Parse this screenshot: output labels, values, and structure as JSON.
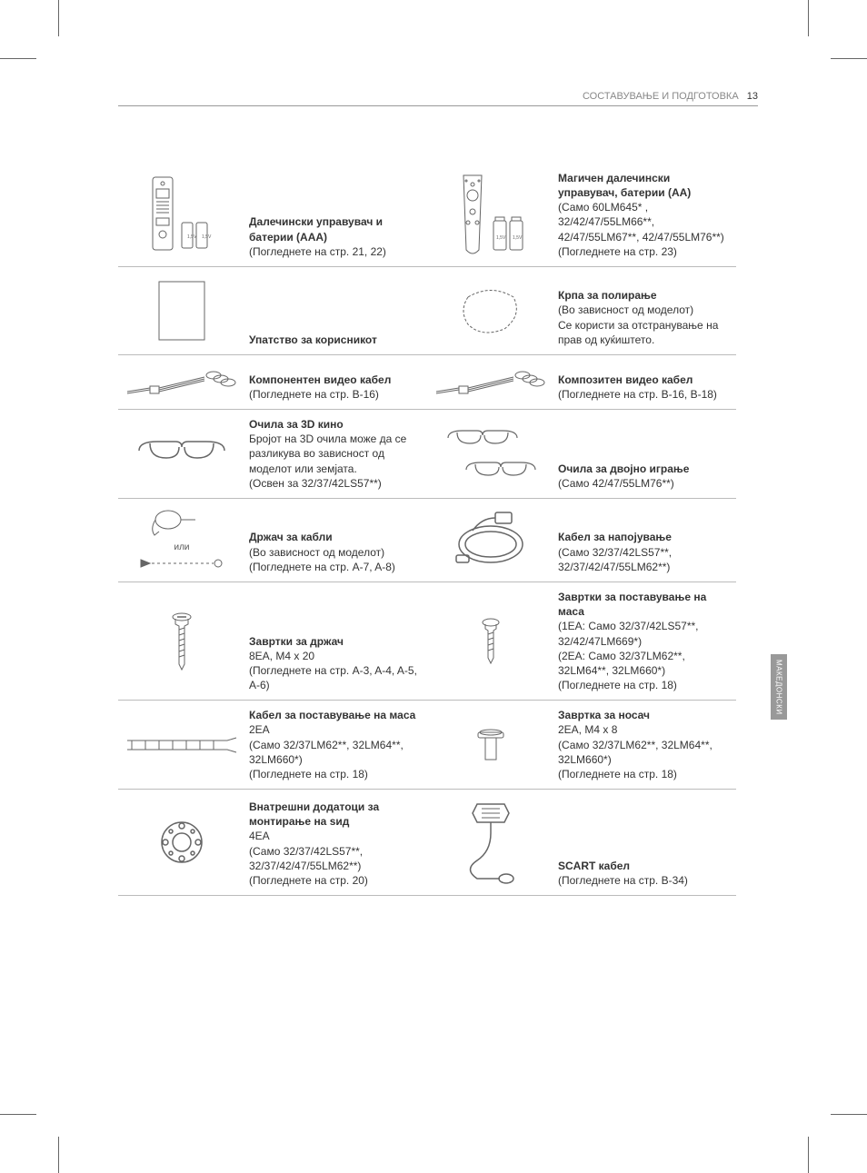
{
  "header": {
    "section": "СОСТАВУВАЊЕ И ПОДГОТОВКА",
    "page": "13"
  },
  "sideTab": "МАКЕДОНСКИ",
  "orLabel": "или",
  "items": [
    {
      "left": {
        "title": "Далечински управувач и батерии (AAA)",
        "sub": "(Погледнете на стр. 21, 22)",
        "icon": "remote-aaa"
      },
      "right": {
        "title": "Магичен далечински управувач, батерии (AA)",
        "sub": "(Само 60LM645* , 32/42/47/55LM66**, 42/47/55LM67**, 42/47/55LM76**)\n(Погледнете на стр. 23)",
        "icon": "magic-remote"
      }
    },
    {
      "left": {
        "title": "Упатство за корисникот",
        "sub": "",
        "icon": "manual"
      },
      "right": {
        "title": "Крпа за полирање",
        "sub": "(Во зависност од моделот)\nСе користи за отстранување на прав од куќиштето.",
        "icon": "cloth"
      }
    },
    {
      "left": {
        "title": "Компонентен видео кабел",
        "sub": "(Погледнете на стр. B-16)",
        "icon": "component-cable"
      },
      "right": {
        "title": "Композитен видео кабел",
        "sub": "(Погледнете на стр. B-16, B-18)",
        "icon": "composite-cable"
      }
    },
    {
      "left": {
        "title": "Очила за 3D кино",
        "sub": "Бројот на 3D очила може да се разликува во зависност од моделот или земјата.\n(Освен за 32/37/42LS57**)",
        "icon": "glasses-single"
      },
      "right": {
        "title": "Очила за двојно играње",
        "sub": "(Само 42/47/55LM76**)",
        "icon": "glasses-dual"
      }
    },
    {
      "left": {
        "title": "Држач за кабли",
        "sub": "(Во зависност од моделот)\n(Погледнете на стр. A-7, A-8)",
        "icon": "cable-holder"
      },
      "right": {
        "title": "Кабел за напојување",
        "sub": "(Само 32/37/42LS57**, 32/37/42/47/55LM62**)",
        "icon": "power-cable"
      }
    },
    {
      "left": {
        "title": "Завртки за држач",
        "sub": "8EA, M4 x 20\n(Погледнете на стр. A-3, A-4, A-5, A-6)",
        "icon": "screw-long"
      },
      "right": {
        "title": "Завртки за поставување на маса",
        "sub": "(1EA: Само 32/37/42LS57**, 32/42/47LM669*)\n(2EA: Само 32/37LM62**, 32LM64**, 32LM660*)\n(Погледнете на стр. 18)",
        "icon": "screw-short"
      }
    },
    {
      "left": {
        "title": "Кабел за поставување на маса",
        "sub": "2EA\n(Само 32/37LM62**, 32LM64**, 32LM660*)\n(Погледнете на стр. 18)",
        "icon": "desk-cable"
      },
      "right": {
        "title": "Завртка за носач",
        "sub": "2EA, M4 x 8\n(Само 32/37LM62**, 32LM64**, 32LM660*)\n(Погледнете на стр. 18)",
        "icon": "bracket-screw"
      }
    },
    {
      "left": {
        "title": "Внатрешни додатоци за монтирање на ѕид",
        "sub": "4EA\n(Само 32/37/42LS57**, 32/37/42/47/55LM62**)\n(Погледнете на стр. 20)",
        "icon": "wall-mount"
      },
      "right": {
        "title": "SCART кабел",
        "sub": "(Погледнете на стр. B-34)",
        "icon": "scart"
      }
    }
  ]
}
